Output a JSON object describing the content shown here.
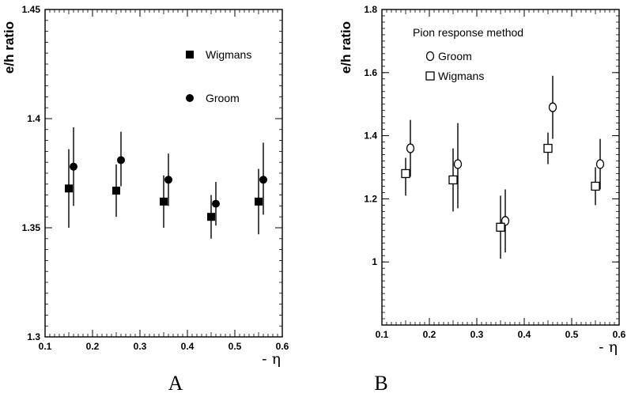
{
  "chart_data": [
    {
      "type": "scatter",
      "panel_label": "A",
      "title": "",
      "xlabel": "- η",
      "ylabel": "e/h ratio",
      "xlim": [
        0.1,
        0.6
      ],
      "ylim": [
        1.3,
        1.45
      ],
      "xticks": [
        "0.1",
        "0.2",
        "0.3",
        "0.4",
        "0.5",
        "0.6"
      ],
      "yticks": [
        "1.3",
        "1.35",
        "1.4",
        "1.45"
      ],
      "legend_title": "",
      "legend_position": "top-right",
      "grid": false,
      "series": [
        {
          "name": "Wigmans",
          "marker": "filled-square",
          "x": [
            0.15,
            0.25,
            0.35,
            0.45,
            0.55
          ],
          "y": [
            1.368,
            1.367,
            1.362,
            1.355,
            1.362
          ],
          "err_low": [
            1.35,
            1.355,
            1.35,
            1.345,
            1.347
          ],
          "err_high": [
            1.386,
            1.379,
            1.374,
            1.365,
            1.377
          ]
        },
        {
          "name": "Groom",
          "marker": "filled-circle",
          "x": [
            0.16,
            0.26,
            0.36,
            0.46,
            0.56
          ],
          "y": [
            1.378,
            1.381,
            1.372,
            1.361,
            1.372
          ],
          "err_low": [
            1.36,
            1.369,
            1.36,
            1.351,
            1.356
          ],
          "err_high": [
            1.396,
            1.394,
            1.384,
            1.371,
            1.389
          ]
        }
      ]
    },
    {
      "type": "scatter",
      "panel_label": "B",
      "title": "",
      "xlabel": "- η",
      "ylabel": "e/h ratio",
      "xlim": [
        0.1,
        0.6
      ],
      "ylim": [
        0.8,
        1.8
      ],
      "xticks": [
        "0.1",
        "0.2",
        "0.3",
        "0.4",
        "0.5",
        "0.6"
      ],
      "yticks": [
        "1",
        "1.2",
        "1.4",
        "1.6",
        "1.8"
      ],
      "legend_title": "Pion response method",
      "legend_position": "top-left",
      "grid": false,
      "series": [
        {
          "name": "Groom",
          "marker": "open-circle",
          "x": [
            0.16,
            0.26,
            0.36,
            0.46,
            0.56
          ],
          "y": [
            1.36,
            1.31,
            1.13,
            1.49,
            1.31
          ],
          "err_low": [
            1.27,
            1.17,
            1.03,
            1.39,
            1.23
          ],
          "err_high": [
            1.45,
            1.44,
            1.23,
            1.59,
            1.39
          ]
        },
        {
          "name": "Wigmans",
          "marker": "open-square",
          "x": [
            0.15,
            0.25,
            0.35,
            0.45,
            0.55
          ],
          "y": [
            1.28,
            1.26,
            1.11,
            1.36,
            1.24
          ],
          "err_low": [
            1.21,
            1.16,
            1.01,
            1.31,
            1.18
          ],
          "err_high": [
            1.33,
            1.36,
            1.21,
            1.41,
            1.3
          ]
        }
      ]
    }
  ]
}
